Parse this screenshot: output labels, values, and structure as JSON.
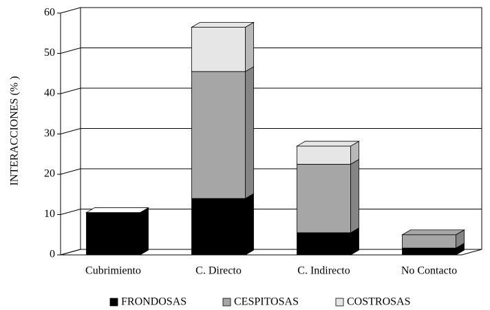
{
  "chart_data": {
    "type": "bar3d_stacked",
    "ylabel": "INTERACCIONES (% )",
    "categories": [
      "Cubrimiento",
      "C. Directo",
      "C. Indirecto",
      "No Contacto"
    ],
    "series": [
      {
        "name": "FRONDOSAS",
        "color": "#000000",
        "values": [
          10.5,
          14,
          5.5,
          1.7
        ]
      },
      {
        "name": "CESPITOSAS",
        "color": "#a6a6a6",
        "values": [
          0,
          31.5,
          17,
          3.3
        ]
      },
      {
        "name": "COSTROSAS",
        "color": "#e6e6e6",
        "values": [
          0,
          11,
          4.5,
          0
        ]
      }
    ],
    "ylim": [
      0,
      60
    ],
    "yticks": [
      0,
      10,
      20,
      30,
      40,
      50,
      60
    ],
    "grid": true,
    "legend": "bottom"
  }
}
